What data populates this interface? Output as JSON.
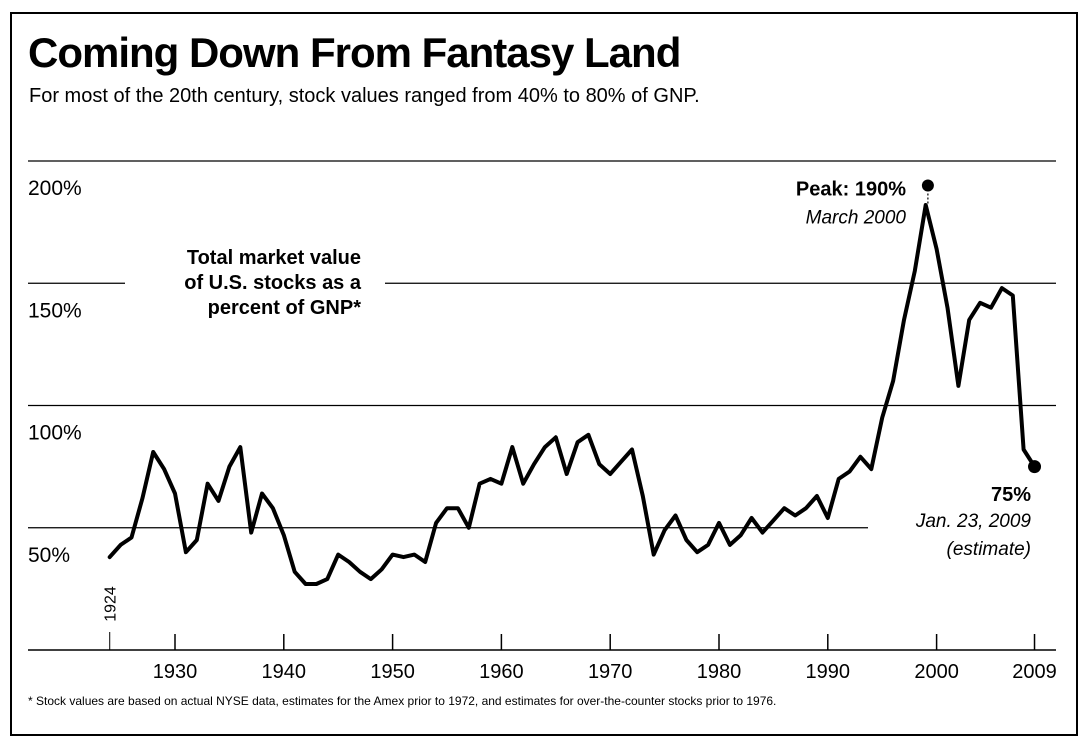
{
  "chart_data": {
    "type": "line",
    "title": "Coming Down From Fantasy Land",
    "subtitle": "For most of the 20th century, stock values ranged from 40% to 80% of GNP.",
    "series_label": [
      "Total market value",
      "of U.S. stocks as a",
      "percent of GNP*"
    ],
    "ylabel": "",
    "xlabel": "",
    "ylim": [
      0,
      210
    ],
    "xlim": [
      1920,
      2010
    ],
    "y_ticks": [
      50,
      100,
      150,
      200
    ],
    "y_tick_labels": [
      "50%",
      "100%",
      "150%",
      "200%"
    ],
    "x_ticks": [
      1930,
      1940,
      1950,
      1960,
      1970,
      1980,
      1990,
      2000,
      2009
    ],
    "x_tick_labels": [
      "1930",
      "1940",
      "1950",
      "1960",
      "1970",
      "1980",
      "1990",
      "2000",
      "2009"
    ],
    "start_label": "1924",
    "grid": true,
    "series": [
      {
        "name": "Total market value of U.S. stocks as a percent of GNP",
        "x": [
          1924,
          1925,
          1926,
          1927,
          1928,
          1929,
          1930,
          1931,
          1932,
          1933,
          1934,
          1935,
          1936,
          1937,
          1938,
          1939,
          1940,
          1941,
          1942,
          1943,
          1944,
          1945,
          1946,
          1947,
          1948,
          1949,
          1950,
          1951,
          1952,
          1953,
          1954,
          1955,
          1956,
          1957,
          1958,
          1959,
          1960,
          1961,
          1962,
          1963,
          1964,
          1965,
          1966,
          1967,
          1968,
          1969,
          1970,
          1971,
          1972,
          1973,
          1974,
          1975,
          1976,
          1977,
          1978,
          1979,
          1980,
          1981,
          1982,
          1983,
          1984,
          1985,
          1986,
          1987,
          1988,
          1989,
          1990,
          1991,
          1992,
          1993,
          1994,
          1995,
          1996,
          1997,
          1998,
          1999,
          2000,
          2001,
          2002,
          2003,
          2004,
          2005,
          2006,
          2007,
          2008,
          2009
        ],
        "values": [
          38,
          43,
          46,
          62,
          81,
          74,
          64,
          40,
          45,
          68,
          61,
          75,
          83,
          48,
          64,
          58,
          47,
          32,
          27,
          27,
          29,
          39,
          36,
          32,
          29,
          33,
          39,
          38,
          39,
          36,
          52,
          58,
          58,
          50,
          68,
          70,
          68,
          83,
          68,
          76,
          83,
          87,
          72,
          85,
          88,
          76,
          72,
          77,
          82,
          63,
          39,
          49,
          55,
          45,
          40,
          43,
          52,
          43,
          47,
          54,
          48,
          53,
          58,
          55,
          58,
          63,
          54,
          70,
          73,
          79,
          74,
          95,
          110,
          135,
          155,
          182,
          164,
          140,
          108,
          135,
          142,
          140,
          148,
          145,
          82,
          75
        ]
      }
    ],
    "annotations": {
      "peak_title": "Peak: 190%",
      "peak_date": "March 2000",
      "peak_x": 1999.2,
      "peak_value": 190,
      "end_value_label": "75%",
      "end_date": "Jan. 23, 2009",
      "end_note": "(estimate)",
      "end_x": 2009,
      "end_value": 75
    }
  },
  "footnote": "* Stock values are based on actual NYSE data, estimates for the Amex prior to 1972, and estimates for over-the-counter stocks prior to 1976."
}
